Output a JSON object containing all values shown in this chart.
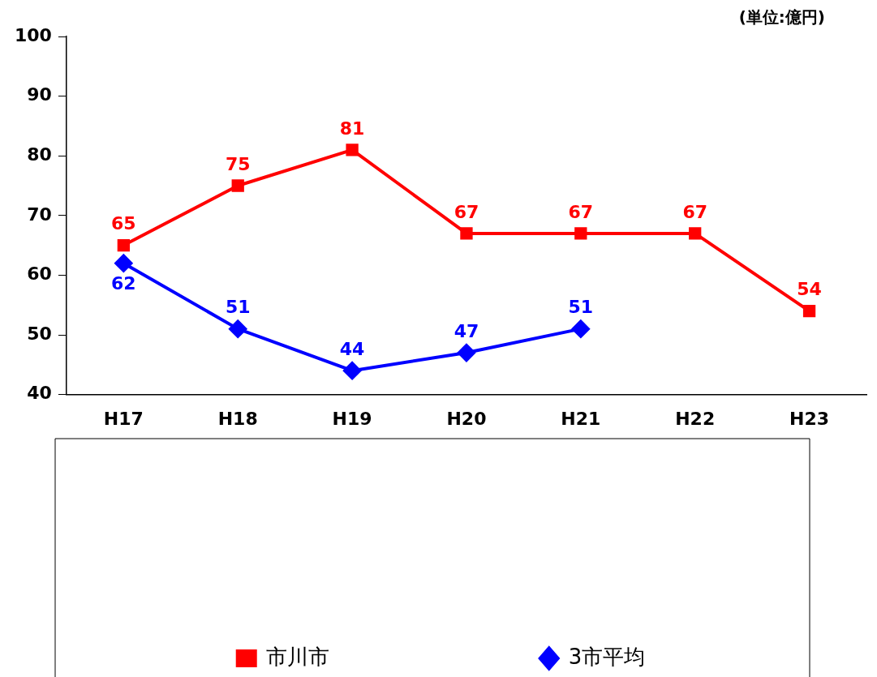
{
  "chart_data": {
    "type": "line",
    "categories": [
      "H17",
      "H18",
      "H19",
      "H20",
      "H21",
      "H22",
      "H23"
    ],
    "series": [
      {
        "name": "市川市",
        "color": "#ff0000",
        "marker": "square",
        "values": [
          65,
          75,
          81,
          67,
          67,
          67,
          54
        ]
      },
      {
        "name": "3市平均",
        "color": "#0000ff",
        "marker": "diamond",
        "values": [
          62,
          51,
          44,
          47,
          51,
          null,
          null
        ]
      }
    ],
    "ylim": [
      40,
      100
    ],
    "yticks": [
      40,
      50,
      60,
      70,
      80,
      90,
      100
    ],
    "grid": false,
    "legend": "bottom",
    "data_labels": true,
    "line_style": "solid",
    "annotations": [
      "(単位:億円)"
    ]
  }
}
